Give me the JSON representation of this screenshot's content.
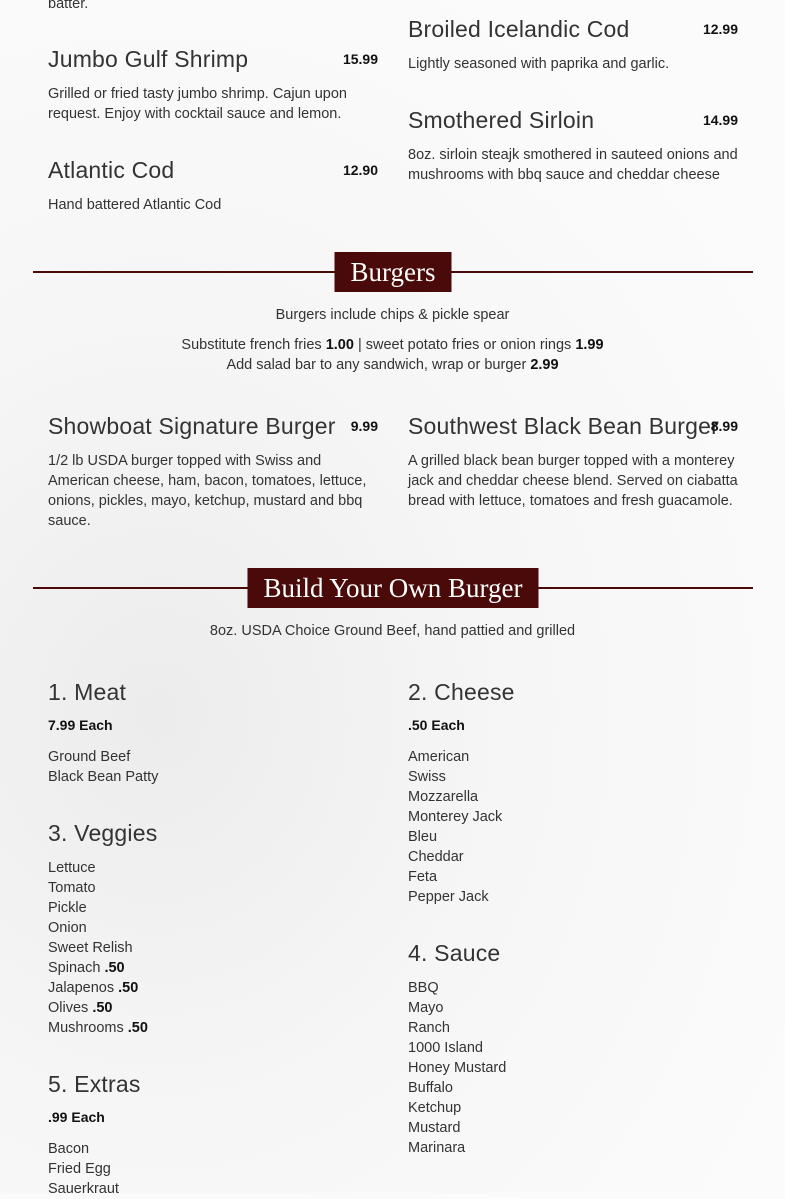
{
  "fish_continued": {
    "tail": "batter.",
    "items": [
      {
        "name": "Jumbo Gulf Shrimp",
        "price": "15.99",
        "description": "Grilled or fried tasty jumbo shrimp. Cajun upon request. Enjoy with cocktail sauce and lemon."
      },
      {
        "name": "Atlantic Cod",
        "price": "12.90",
        "description": "Hand battered Atlantic Cod"
      },
      {
        "name": "Broiled Icelandic Cod",
        "price": "12.99",
        "description": "Lightly seasoned with paprika and garlic."
      },
      {
        "name": "Smothered Sirloin",
        "price": "14.99",
        "description": "8oz. sirloin steajk smothered in sauteed onions and mushrooms with bbq sauce and cheddar cheese"
      }
    ]
  },
  "burgers": {
    "title": "Burgers",
    "note": "Burgers include chips & pickle spear",
    "substitute": {
      "text1": "Substitute french fries",
      "price1": "1.00",
      "text2": "| sweet potato fries or onion rings",
      "price2": "1.99"
    },
    "salad": {
      "text": "Add salad bar to any sandwich, wrap or burger",
      "price": "2.99"
    },
    "items": [
      {
        "name": "Showboat Signature Burger",
        "price": "9.99",
        "description": "1/2 lb USDA burger topped with Swiss and American cheese, ham, bacon, tomatoes, lettuce, onions, pickles, mayo, ketchup, mustard and bbq sauce."
      },
      {
        "name": "Southwest Black Bean Burger",
        "price": "8.99",
        "description": "A grilled black bean burger topped with a monterey jack and cheddar cheese blend. Served on ciabatta bread with lettuce, tomatoes and fresh guacamole."
      }
    ]
  },
  "build": {
    "title": "Build Your Own Burger",
    "note": "8oz. USDA Choice Ground Beef, hand pattied and grilled",
    "meat": {
      "title": "1. Meat",
      "each": "7.99 Each",
      "options": [
        "Ground Beef",
        "Black Bean Patty"
      ]
    },
    "cheese": {
      "title": "2. Cheese",
      "each": ".50 Each",
      "options": [
        "American",
        "Swiss",
        "Mozzarella",
        "Monterey Jack",
        "Bleu",
        "Cheddar",
        "Feta",
        "Pepper Jack"
      ]
    },
    "veggies": {
      "title": "3. Veggies",
      "options": [
        "Lettuce",
        "Tomato",
        "Pickle",
        "Onion",
        "Sweet Relish",
        {
          "name": "Spinach",
          "price": ".50"
        },
        {
          "name": "Jalapenos",
          "price": ".50"
        },
        {
          "name": "Olives",
          "price": ".50"
        },
        {
          "name": "Mushrooms",
          "price": ".50"
        }
      ]
    },
    "sauce": {
      "title": "4. Sauce",
      "options": [
        "BBQ",
        "Mayo",
        "Ranch",
        "1000 Island",
        "Honey Mustard",
        "Buffalo",
        "Ketchup",
        "Mustard",
        "Marinara"
      ]
    },
    "extras": {
      "title": "5. Extras",
      "each": ".99 Each",
      "options": [
        "Bacon",
        "Fried Egg",
        "Sauerkraut"
      ]
    }
  }
}
